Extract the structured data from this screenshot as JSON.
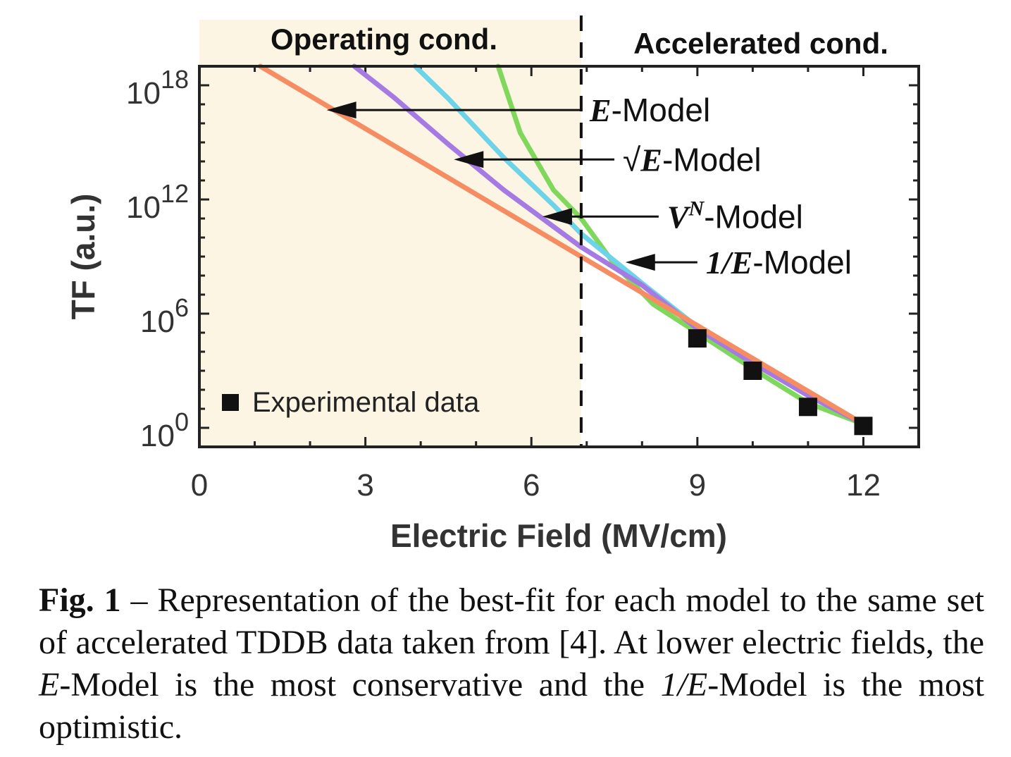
{
  "chart_data": {
    "type": "line",
    "x_range": [
      0,
      13
    ],
    "y_log10_range": [
      -1,
      19
    ],
    "xlabel": "Electric Field (MV/cm)",
    "ylabel": "TF (a.u.)",
    "x_ticks": [
      0,
      3,
      6,
      9,
      12
    ],
    "x_tick_labels": [
      "0",
      "3",
      "6",
      "9",
      "12"
    ],
    "y_ticks": [
      {
        "exp": 0,
        "base": "10",
        "sup": "0"
      },
      {
        "exp": 6,
        "base": "10",
        "sup": "6"
      },
      {
        "exp": 12,
        "base": "10",
        "sup": "12"
      },
      {
        "exp": 18,
        "base": "10",
        "sup": "18"
      }
    ],
    "regions": {
      "boundary_x": 6.9,
      "operating_label": "Operating cond.",
      "operating_color": "#fcf5e3",
      "accelerated_label": "Accelerated cond."
    },
    "series": [
      {
        "name": "E-Model",
        "label_main": "E",
        "label_sup": "",
        "label_prefix": "",
        "label_suffix": "-Model",
        "color": "#f58c62",
        "x": [
          1.1,
          12.0
        ],
        "log10_y": [
          19.0,
          0.2
        ],
        "arrow_from": [
          6.9,
          16.7
        ],
        "arrow_to": [
          2.3,
          16.7
        ]
      },
      {
        "name": "√E-Model",
        "label_main": "E",
        "label_sup": "",
        "label_prefix": "√",
        "label_suffix": "-Model",
        "color": "#a57be3",
        "x": [
          2.8,
          3.5,
          4.5,
          5.5,
          6.9,
          8.0,
          9.0,
          10.0,
          11.0,
          12.0
        ],
        "log10_y": [
          19.0,
          17.4,
          14.9,
          12.5,
          9.5,
          7.5,
          5.2,
          3.4,
          1.7,
          0.2
        ],
        "arrow_from": [
          7.5,
          14.1
        ],
        "arrow_to": [
          4.6,
          14.1
        ]
      },
      {
        "name": "V^N-Model",
        "label_main": "V",
        "label_sup": "N",
        "label_prefix": "",
        "label_suffix": "-Model",
        "color": "#6dd3e8",
        "x": [
          3.9,
          4.5,
          5.5,
          6.4,
          6.9,
          8.0,
          9.0,
          10.0,
          11.0,
          12.0
        ],
        "log10_y": [
          19.0,
          17.3,
          14.2,
          11.7,
          10.2,
          7.6,
          5.3,
          3.4,
          1.7,
          0.2
        ],
        "arrow_from": [
          8.3,
          11.1
        ],
        "arrow_to": [
          6.2,
          11.1
        ]
      },
      {
        "name": "1/E-Model",
        "label_main": "1/E",
        "label_sup": "",
        "label_prefix": "",
        "label_suffix": "-Model",
        "color": "#7fd85c",
        "x": [
          5.4,
          5.8,
          6.4,
          6.9,
          7.5,
          8.2,
          9.0,
          10.0,
          11.0,
          12.0
        ],
        "log10_y": [
          19.0,
          15.5,
          12.5,
          11.0,
          8.6,
          6.5,
          5.0,
          3.1,
          1.3,
          0.2
        ],
        "arrow_from": [
          9.0,
          8.7
        ],
        "arrow_to": [
          7.7,
          8.7
        ]
      }
    ],
    "experimental": {
      "legend": "Experimental data",
      "x": [
        9.0,
        10.0,
        11.0,
        12.0
      ],
      "log10_y": [
        4.7,
        3.0,
        1.1,
        0.1
      ]
    }
  },
  "caption": {
    "label": "Fig. 1",
    "sep": " – ",
    "text1": "Representation of the best-fit for each model to the same set of accelerated TDDB data taken from [4]. At lower electric fields, the ",
    "em1": "E",
    "text2": "-Model is the most conservative and the ",
    "em2": "1/E",
    "text3": "-Model is the most optimistic."
  }
}
